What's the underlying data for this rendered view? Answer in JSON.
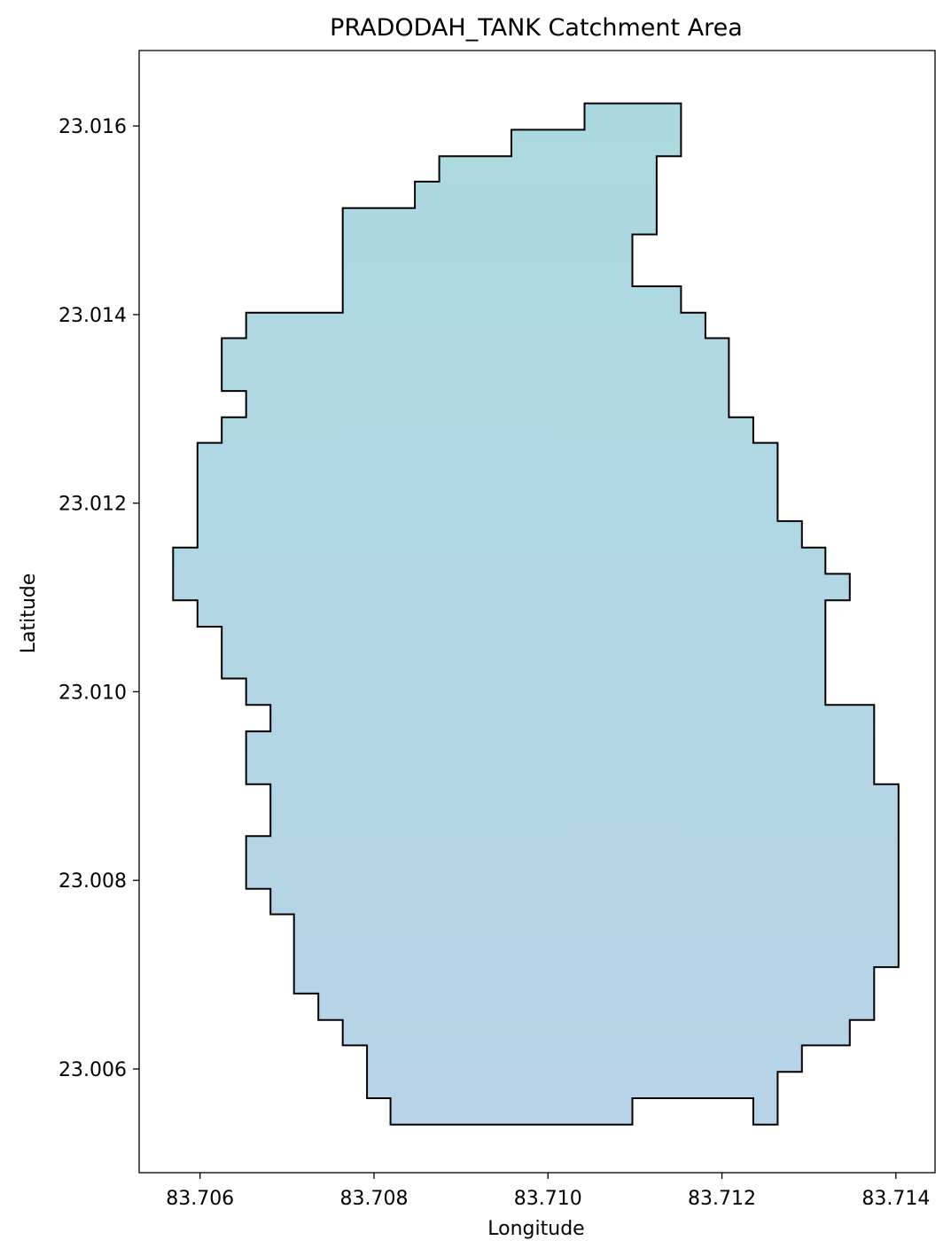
{
  "chart_data": {
    "type": "map",
    "title": "PRADODAH_TANK Catchment Area",
    "xlabel": "Longitude",
    "ylabel": "Latitude",
    "xlim": [
      83.7053,
      83.71445
    ],
    "ylim": [
      23.0049,
      23.0168
    ],
    "xticks": [
      {
        "value": 83.706,
        "label": "83.706"
      },
      {
        "value": 83.708,
        "label": "83.708"
      },
      {
        "value": 83.71,
        "label": "83.710"
      },
      {
        "value": 83.712,
        "label": "83.712"
      },
      {
        "value": 83.714,
        "label": "83.714"
      }
    ],
    "yticks": [
      {
        "value": 23.006,
        "label": "23.006"
      },
      {
        "value": 23.008,
        "label": "23.008"
      },
      {
        "value": 23.01,
        "label": "23.010"
      },
      {
        "value": 23.012,
        "label": "23.012"
      },
      {
        "value": 23.014,
        "label": "23.014"
      },
      {
        "value": 23.016,
        "label": "23.016"
      }
    ],
    "grid": false,
    "legend": "none",
    "fill_color_top": "#acd9e0",
    "fill_color_bottom": "#b8d3e8",
    "edge_color": "#000000",
    "polygon": [
      [
        83.71042,
        23.01624
      ],
      [
        83.71153,
        23.01624
      ],
      [
        83.71153,
        23.01568
      ],
      [
        83.71125,
        23.01568
      ],
      [
        83.71125,
        23.01485
      ],
      [
        83.71097,
        23.01485
      ],
      [
        83.71097,
        23.0143
      ],
      [
        83.71153,
        23.0143
      ],
      [
        83.71153,
        23.01402
      ],
      [
        83.71181,
        23.01402
      ],
      [
        83.71181,
        23.01375
      ],
      [
        83.71208,
        23.01375
      ],
      [
        83.71208,
        23.01291
      ],
      [
        83.71236,
        23.01291
      ],
      [
        83.71236,
        23.01264
      ],
      [
        83.71264,
        23.01264
      ],
      [
        83.71264,
        23.01181
      ],
      [
        83.71292,
        23.01181
      ],
      [
        83.71292,
        23.01153
      ],
      [
        83.71319,
        23.01153
      ],
      [
        83.71319,
        23.01125
      ],
      [
        83.71347,
        23.01125
      ],
      [
        83.71347,
        23.01097
      ],
      [
        83.71319,
        23.01097
      ],
      [
        83.71319,
        23.00986
      ],
      [
        83.71375,
        23.00986
      ],
      [
        83.71375,
        23.00902
      ],
      [
        83.71403,
        23.00902
      ],
      [
        83.71403,
        23.00708
      ],
      [
        83.71375,
        23.00708
      ],
      [
        83.71375,
        23.00652
      ],
      [
        83.71347,
        23.00652
      ],
      [
        83.71347,
        23.00625
      ],
      [
        83.71292,
        23.00625
      ],
      [
        83.71292,
        23.00597
      ],
      [
        83.71264,
        23.00597
      ],
      [
        83.71264,
        23.00541
      ],
      [
        83.71236,
        23.00541
      ],
      [
        83.71236,
        23.00569
      ],
      [
        83.71097,
        23.00569
      ],
      [
        83.71097,
        23.00541
      ],
      [
        83.70819,
        23.00541
      ],
      [
        83.70819,
        23.00569
      ],
      [
        83.70792,
        23.00569
      ],
      [
        83.70792,
        23.00625
      ],
      [
        83.70764,
        23.00625
      ],
      [
        83.70764,
        23.00652
      ],
      [
        83.70736,
        23.00652
      ],
      [
        83.70736,
        23.0068
      ],
      [
        83.70708,
        23.0068
      ],
      [
        83.70708,
        23.00764
      ],
      [
        83.70681,
        23.00764
      ],
      [
        83.70681,
        23.00791
      ],
      [
        83.70653,
        23.00791
      ],
      [
        83.70653,
        23.00847
      ],
      [
        83.70681,
        23.00847
      ],
      [
        83.70681,
        23.00902
      ],
      [
        83.70653,
        23.00902
      ],
      [
        83.70653,
        23.00958
      ],
      [
        83.70681,
        23.00958
      ],
      [
        83.70681,
        23.00986
      ],
      [
        83.70653,
        23.00986
      ],
      [
        83.70653,
        23.01014
      ],
      [
        83.70625,
        23.01014
      ],
      [
        83.70625,
        23.01069
      ],
      [
        83.70597,
        23.01069
      ],
      [
        83.70597,
        23.01097
      ],
      [
        83.70569,
        23.01097
      ],
      [
        83.70569,
        23.01153
      ],
      [
        83.70597,
        23.01153
      ],
      [
        83.70597,
        23.01264
      ],
      [
        83.70625,
        23.01264
      ],
      [
        83.70625,
        23.01291
      ],
      [
        83.70653,
        23.01291
      ],
      [
        83.70653,
        23.01319
      ],
      [
        83.70625,
        23.01319
      ],
      [
        83.70625,
        23.01375
      ],
      [
        83.70653,
        23.01375
      ],
      [
        83.70653,
        23.01402
      ],
      [
        83.70764,
        23.01402
      ],
      [
        83.70764,
        23.01513
      ],
      [
        83.70847,
        23.01513
      ],
      [
        83.70847,
        23.01541
      ],
      [
        83.70875,
        23.01541
      ],
      [
        83.70875,
        23.01568
      ],
      [
        83.70958,
        23.01568
      ],
      [
        83.70958,
        23.01596
      ],
      [
        83.71042,
        23.01596
      ]
    ]
  }
}
